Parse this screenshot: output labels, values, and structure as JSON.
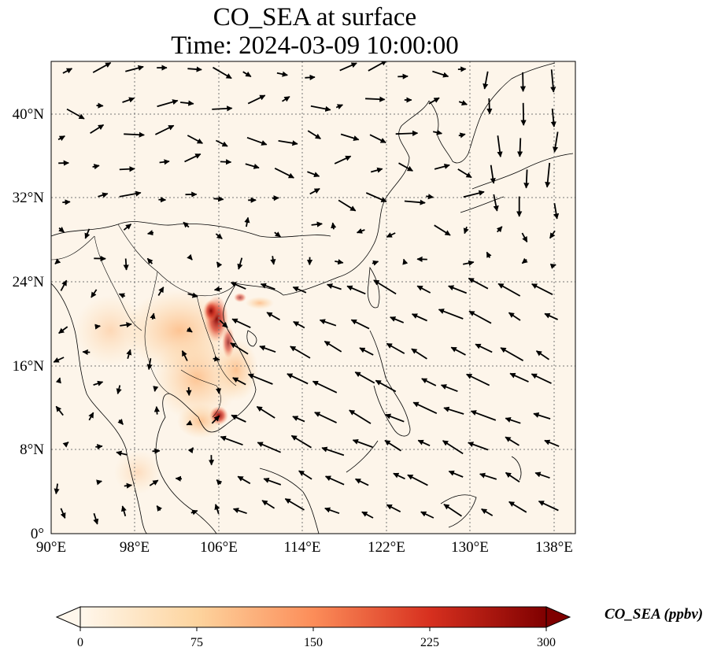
{
  "title": {
    "line1": "CO_SEA at surface",
    "line2": "Time: 2024-03-09 10:00:00"
  },
  "map": {
    "lon_range": [
      90,
      140
    ],
    "lat_range": [
      0,
      45
    ],
    "x_ticks": [
      "90°E",
      "98°E",
      "106°E",
      "114°E",
      "122°E",
      "130°E",
      "138°E"
    ],
    "y_ticks": [
      "0°",
      "8°N",
      "16°N",
      "24°N",
      "32°N",
      "40°N"
    ],
    "gridlines": true,
    "wind_vectors": true,
    "colormap": "OrRd"
  },
  "colorbar": {
    "label": "CO_SEA (ppbv)",
    "ticks": [
      "0",
      "75",
      "150",
      "225",
      "300"
    ],
    "min": 0,
    "max": 300,
    "extend": "both",
    "colors": [
      "#fff7ec",
      "#fdd49e",
      "#fc8d59",
      "#d7301f",
      "#7f0000"
    ]
  }
}
